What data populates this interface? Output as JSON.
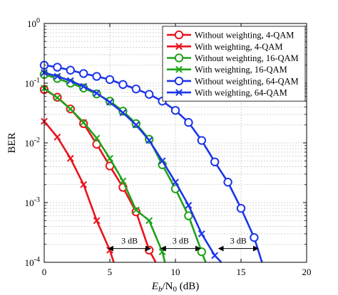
{
  "chart_data": {
    "type": "line",
    "xlabel_main": "E",
    "xlabel_sub": "b",
    "xlabel_mid": "/N",
    "xlabel_sub2": "0",
    "xlabel_unit": " (dB)",
    "ylabel": "BER",
    "xlim": [
      0,
      20
    ],
    "ylim": [
      0.0001,
      1
    ],
    "yscale": "log",
    "grid": true,
    "legend_position": "top-right",
    "x_ticks": [
      "0",
      "5",
      "10",
      "15",
      "20"
    ],
    "y_ticks": [
      {
        "base": "10",
        "exp": "0"
      },
      {
        "base": "10",
        "exp": "-1"
      },
      {
        "base": "10",
        "exp": "-2"
      },
      {
        "base": "10",
        "exp": "-3"
      },
      {
        "base": "10",
        "exp": "-4"
      }
    ],
    "series": [
      {
        "name": "Without weighting, 4-QAM",
        "color": "#e8141c",
        "marker": "circle",
        "x": [
          0,
          1,
          2,
          3,
          4,
          5,
          6,
          7,
          8,
          8.5
        ],
        "y": [
          0.078,
          0.058,
          0.037,
          0.021,
          0.0095,
          0.0041,
          0.0018,
          0.0007,
          0.00016,
          0.0001
        ]
      },
      {
        "name": "With weighting, 4-QAM",
        "color": "#e8141c",
        "marker": "x",
        "x": [
          0,
          1,
          2,
          3,
          4,
          5,
          5.3
        ],
        "y": [
          0.023,
          0.0125,
          0.0055,
          0.002,
          0.0005,
          0.00016,
          0.0001
        ]
      },
      {
        "name": "Without weighting, 16-QAM",
        "color": "#1fa319",
        "marker": "circle",
        "x": [
          0,
          1,
          2,
          3,
          4,
          5,
          6,
          7,
          8,
          9,
          10,
          11,
          12,
          12.3
        ],
        "y": [
          0.14,
          0.12,
          0.1,
          0.083,
          0.066,
          0.05,
          0.034,
          0.021,
          0.0115,
          0.0043,
          0.0017,
          0.0006,
          0.00015,
          0.0001
        ]
      },
      {
        "name": "With weighting, 16-QAM",
        "color": "#1fa319",
        "marker": "x",
        "x": [
          0,
          1,
          2,
          3,
          4,
          5,
          6,
          7,
          8,
          9,
          9.2
        ],
        "y": [
          0.082,
          0.057,
          0.037,
          0.022,
          0.012,
          0.0055,
          0.0023,
          0.00075,
          0.0005,
          0.00015,
          0.0001
        ]
      },
      {
        "name": "Without weighting, 64-QAM",
        "color": "#1c35e8",
        "marker": "circle",
        "x": [
          0,
          1,
          2,
          3,
          4,
          5,
          6,
          7,
          8,
          9,
          10,
          11,
          12,
          13,
          14,
          15,
          16,
          16.6
        ],
        "y": [
          0.2,
          0.185,
          0.165,
          0.145,
          0.13,
          0.115,
          0.095,
          0.08,
          0.065,
          0.05,
          0.035,
          0.022,
          0.011,
          0.0048,
          0.0022,
          0.0008,
          0.00026,
          0.0001
        ]
      },
      {
        "name": "With weighting, 64-QAM",
        "color": "#1c35e8",
        "marker": "x",
        "x": [
          0,
          1,
          2,
          3,
          4,
          5,
          6,
          7,
          8,
          9,
          10,
          11,
          12,
          13,
          13.5
        ],
        "y": [
          0.15,
          0.13,
          0.11,
          0.088,
          0.068,
          0.048,
          0.032,
          0.02,
          0.011,
          0.005,
          0.0022,
          0.0009,
          0.0003,
          0.00013,
          0.0001
        ]
      }
    ],
    "annotations": [
      {
        "text": "3 dB",
        "x1": 4.9,
        "x2": 8.1,
        "y": 0.00017
      },
      {
        "text": "3 dB",
        "x1": 8.9,
        "x2": 11.9,
        "y": 0.00017
      },
      {
        "text": "3 dB",
        "x1": 13.3,
        "x2": 16.3,
        "y": 0.00017
      }
    ]
  }
}
